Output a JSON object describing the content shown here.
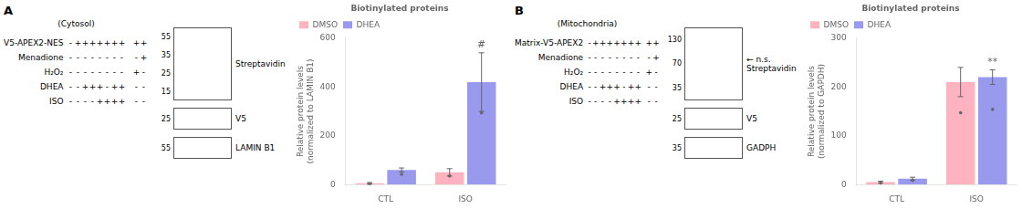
{
  "chart_data": [
    {
      "type": "bar",
      "title": "Biotinylated proteins",
      "ylabel": "Relative protein levels\n(normalized to LAMIN B1)",
      "categories": [
        "CTL",
        "ISO"
      ],
      "series": [
        {
          "name": "DMSO",
          "color": "#ffb3c1",
          "values": [
            5,
            50
          ],
          "errors": [
            3,
            15
          ],
          "points": [
            3.5,
            35
          ]
        },
        {
          "name": "DHEA",
          "color": "#9999ee",
          "values": [
            60,
            420
          ],
          "errors": [
            8,
            120
          ],
          "points": [
            42,
            294
          ]
        }
      ],
      "ylim": [
        0,
        600
      ],
      "yticks": [
        0,
        200,
        400,
        600
      ],
      "grid": false,
      "legend": "upper left",
      "annotations": [
        {
          "text": "#",
          "series": "DHEA",
          "category": "ISO"
        }
      ],
      "table": {
        "label": "A",
        "heading": "(Cytosol)",
        "rows": [
          {
            "name": "V5-APEX2-NES",
            "values": [
              "-",
              "+",
              "+",
              "+",
              "+",
              "+",
              "+",
              "+",
              null,
              "+",
              "+"
            ]
          },
          {
            "name": "Menadione",
            "values": [
              "-",
              "-",
              "-",
              "-",
              "-",
              "-",
              "-",
              "-",
              null,
              "-",
              "+"
            ]
          },
          {
            "name": "H₂O₂",
            "values": [
              "-",
              "-",
              "-",
              "-",
              "-",
              "-",
              "-",
              "-",
              null,
              "+",
              "-"
            ]
          },
          {
            "name": "DHEA",
            "values": [
              "-",
              "-",
              "+",
              "+",
              "+",
              "-",
              "+",
              "+",
              null,
              "-",
              "-"
            ]
          },
          {
            "name": "ISO",
            "values": [
              "-",
              "-",
              "-",
              "-",
              "+",
              "+",
              "+",
              "+",
              null,
              "-",
              "-"
            ]
          }
        ]
      },
      "blots": [
        {
          "name": "Streptavidin",
          "markers": [
            55,
            35,
            25,
            15
          ]
        },
        {
          "name": "V5",
          "markers": [
            25
          ]
        },
        {
          "name": "LAMIN B1",
          "markers": [
            55
          ]
        }
      ]
    },
    {
      "type": "bar",
      "title": "Biotinylated proteins",
      "ylabel": "Relative protein levels\n(normalized to GAPDH)",
      "categories": [
        "CTL",
        "ISO"
      ],
      "series": [
        {
          "name": "DMSO",
          "color": "#ffb3c1",
          "values": [
            5,
            210
          ],
          "errors": [
            2,
            30
          ],
          "points": [
            3.5,
            147
          ]
        },
        {
          "name": "DHEA",
          "color": "#9999ee",
          "values": [
            12,
            220
          ],
          "errors": [
            3,
            15
          ],
          "points": [
            8.4,
            154
          ]
        }
      ],
      "ylim": [
        0,
        300
      ],
      "yticks": [
        0,
        100,
        200,
        300
      ],
      "grid": false,
      "legend": "upper left",
      "annotations": [
        {
          "text": "**",
          "series": "DHEA",
          "category": "ISO"
        }
      ],
      "table": {
        "label": "B",
        "heading": "(Mitochondria)",
        "rows": [
          {
            "name": "Matrix-V5-APEX2",
            "values": [
              "-",
              "+",
              "+",
              "+",
              "+",
              "+",
              "+",
              "+",
              null,
              "+",
              "+"
            ]
          },
          {
            "name": "Menadione",
            "values": [
              "-",
              "-",
              "-",
              "-",
              "-",
              "-",
              "-",
              "-",
              null,
              "-",
              "+"
            ]
          },
          {
            "name": "H₂O₂",
            "values": [
              "-",
              "-",
              "-",
              "-",
              "-",
              "-",
              "-",
              "-",
              null,
              "+",
              "-"
            ]
          },
          {
            "name": "DHEA",
            "values": [
              "-",
              "-",
              "+",
              "+",
              "+",
              "-",
              "+",
              "+",
              null,
              "-",
              "-"
            ]
          },
          {
            "name": "ISO",
            "values": [
              "-",
              "-",
              "-",
              "-",
              "+",
              "+",
              "+",
              "+",
              null,
              "-",
              "-"
            ]
          }
        ]
      },
      "blots": [
        {
          "name": "Streptavidin",
          "markers": [
            130,
            70,
            35
          ],
          "note": "← n.s."
        },
        {
          "name": "V5",
          "markers": [
            25
          ]
        },
        {
          "name": "GADPH",
          "markers": [
            35
          ]
        }
      ]
    }
  ]
}
